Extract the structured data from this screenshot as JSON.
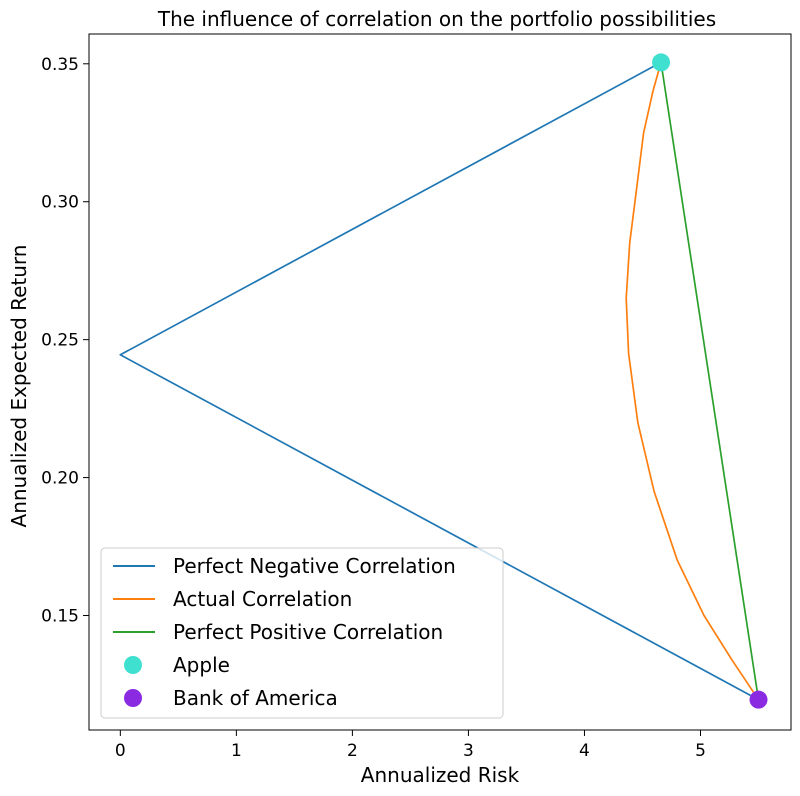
{
  "chart_data": {
    "type": "line",
    "title": "The influence of correlation on the portfolio possibilities",
    "xlabel": "Annualized Risk",
    "ylabel": "Annualized Expected Return",
    "xlim": [
      -0.27,
      5.78
    ],
    "ylim": [
      0.1085,
      0.3608
    ],
    "xticks": [
      0,
      1,
      2,
      3,
      4,
      5
    ],
    "yticks": [
      0.15,
      0.2,
      0.25,
      0.3,
      0.35
    ],
    "ytick_labels": [
      "0.15",
      "0.20",
      "0.25",
      "0.30",
      "0.35"
    ],
    "grid": false,
    "legend_position": "lower-left",
    "series": [
      {
        "name": "Perfect Negative Correlation",
        "kind": "line",
        "color": "#1f77b4",
        "points": [
          [
            4.66,
            0.3505
          ],
          [
            0.0,
            0.2445
          ],
          [
            5.5,
            0.1195
          ]
        ]
      },
      {
        "name": "Actual Correlation",
        "kind": "line",
        "color": "#ff7f0e",
        "points": [
          [
            4.66,
            0.3505
          ],
          [
            4.59,
            0.34
          ],
          [
            4.51,
            0.325
          ],
          [
            4.45,
            0.305
          ],
          [
            4.39,
            0.285
          ],
          [
            4.36,
            0.265
          ],
          [
            4.38,
            0.245
          ],
          [
            4.46,
            0.22
          ],
          [
            4.6,
            0.195
          ],
          [
            4.8,
            0.17
          ],
          [
            5.03,
            0.15
          ],
          [
            5.27,
            0.134
          ],
          [
            5.5,
            0.1195
          ]
        ]
      },
      {
        "name": "Perfect Positive Correlation",
        "kind": "line",
        "color": "#2ca02c",
        "points": [
          [
            4.66,
            0.3505
          ],
          [
            5.5,
            0.1195
          ]
        ]
      },
      {
        "name": "Apple",
        "kind": "scatter",
        "color": "#40e0d0",
        "points": [
          [
            4.66,
            0.3505
          ]
        ]
      },
      {
        "name": "Bank of America",
        "kind": "scatter",
        "color": "#8a2be2",
        "points": [
          [
            5.5,
            0.1195
          ]
        ]
      }
    ]
  }
}
